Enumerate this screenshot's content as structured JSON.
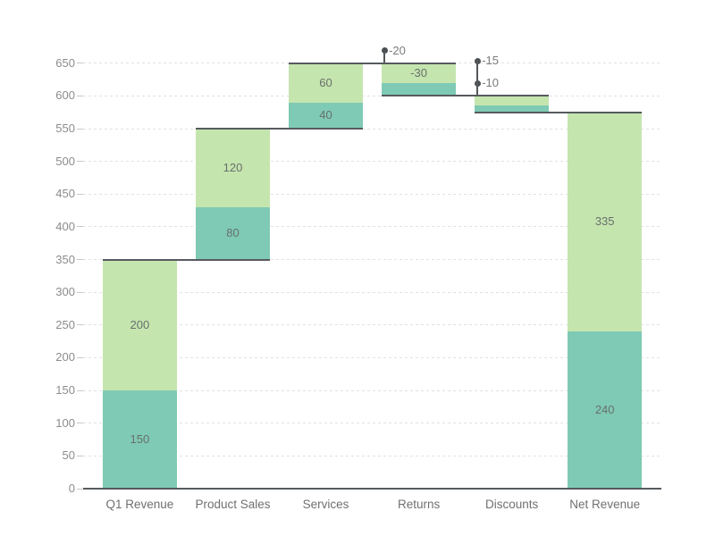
{
  "chart_data": {
    "type": "bar",
    "subtype": "stacked-waterfall",
    "title": "",
    "xlabel": "",
    "ylabel": "",
    "legend": "none",
    "grid": "horizontal-dashed",
    "background": "#ffffff",
    "categories": [
      "Q1 Revenue",
      "Product Sales",
      "Services",
      "Returns",
      "Discounts",
      "Net Revenue"
    ],
    "y_axis": {
      "min": 0,
      "max": 650,
      "step": 50,
      "tick_labels": [
        "0",
        "50",
        "100",
        "150",
        "200",
        "250",
        "300",
        "350",
        "400",
        "450",
        "500",
        "550",
        "600",
        "650"
      ]
    },
    "series": [
      {
        "name": "series-1",
        "color": "#7fcab4"
      },
      {
        "name": "series-2",
        "color": "#c5e5af"
      }
    ],
    "bars": [
      {
        "category": "Q1 Revenue",
        "segments": [
          {
            "series": "series-1",
            "value": 150,
            "span": [
              0,
              150
            ],
            "label": "150",
            "label_placement": "inside"
          },
          {
            "series": "series-2",
            "value": 200,
            "span": [
              150,
              350
            ],
            "label": "200",
            "label_placement": "inside"
          }
        ]
      },
      {
        "category": "Product Sales",
        "segments": [
          {
            "series": "series-1",
            "value": 80,
            "span": [
              350,
              430
            ],
            "label": "80",
            "label_placement": "inside"
          },
          {
            "series": "series-2",
            "value": 120,
            "span": [
              430,
              550
            ],
            "label": "120",
            "label_placement": "inside"
          }
        ]
      },
      {
        "category": "Services",
        "segments": [
          {
            "series": "series-1",
            "value": 40,
            "span": [
              550,
              590
            ],
            "label": "40",
            "label_placement": "inside"
          },
          {
            "series": "series-2",
            "value": 60,
            "span": [
              590,
              650
            ],
            "label": "60",
            "label_placement": "inside"
          }
        ]
      },
      {
        "category": "Returns",
        "segments": [
          {
            "series": "series-1",
            "value": -20,
            "span": [
              600,
              620
            ],
            "label": "-20",
            "label_placement": "outside"
          },
          {
            "series": "series-2",
            "value": -30,
            "span": [
              620,
              650
            ],
            "label": "-30",
            "label_placement": "inside"
          }
        ]
      },
      {
        "category": "Discounts",
        "segments": [
          {
            "series": "series-1",
            "value": -10,
            "span": [
              575,
              585
            ],
            "label": "-10",
            "label_placement": "outside"
          },
          {
            "series": "series-2",
            "value": -15,
            "span": [
              585,
              600
            ],
            "label": "-15",
            "label_placement": "outside"
          }
        ]
      },
      {
        "category": "Net Revenue",
        "segments": [
          {
            "series": "series-1",
            "value": 240,
            "span": [
              0,
              240
            ],
            "label": "240",
            "label_placement": "inside"
          },
          {
            "series": "series-2",
            "value": 335,
            "span": [
              240,
              575
            ],
            "label": "335",
            "label_placement": "inside"
          }
        ]
      }
    ],
    "cumulative_totals": [
      350,
      550,
      650,
      600,
      575,
      575
    ],
    "connectors": [
      {
        "level": 350,
        "from_category": 0,
        "to_category": 1
      },
      {
        "level": 550,
        "from_category": 1,
        "to_category": 2
      },
      {
        "level": 650,
        "from_category": 2,
        "to_category": 3
      },
      {
        "level": 600,
        "from_category": 3,
        "to_category": 4
      },
      {
        "level": 575,
        "from_category": 4,
        "to_category": 5
      }
    ]
  }
}
